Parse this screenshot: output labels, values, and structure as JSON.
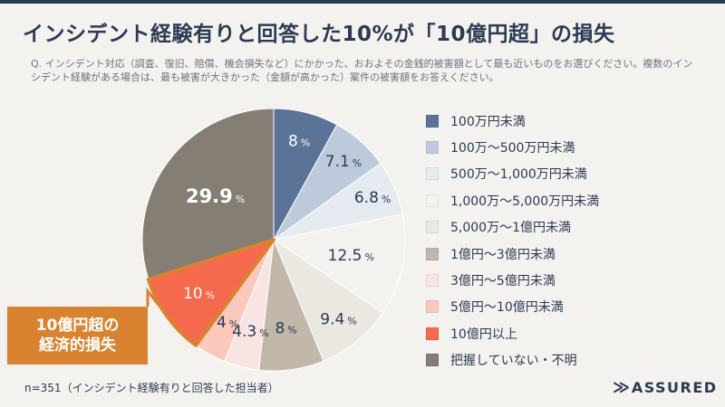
{
  "title": "インシデント経験有りと回答した10%が「10億円超」の損失",
  "question": "Q. インシデント対応（調査、復旧、賠償、機会損失など）にかかった、おおよその金銭的被害額として最も近いものをお選びください。複数のインシデント経験がある場合は、最も被害が大きかった（金額が高かった）案件の被害額をお答えください。",
  "callout": {
    "line1": "10億円超の",
    "line2": "経済的損失"
  },
  "footnote": "n=351（インシデント経験有りと回答した担当者）",
  "logo": {
    "text": "ASSURED",
    "icon": "double-chevron-logo-icon"
  },
  "colors": {
    "accent": "#d9822f",
    "title": "#2b3a55",
    "background": "#f4f2ef"
  },
  "chart_data": {
    "type": "pie",
    "unit": "%",
    "start": "12 o'clock, clockwise",
    "legend_position": "right",
    "highlight": "10億円以上",
    "slices": [
      {
        "label": "100万円未満",
        "value": 8,
        "color": "#5a7397",
        "text_color": "#ffffff"
      },
      {
        "label": "100万〜500万円未満",
        "value": 7.1,
        "color": "#bccadb",
        "text_color": "#2b3a55"
      },
      {
        "label": "500万〜1,000万円未満",
        "value": 6.8,
        "color": "#e6eaf1",
        "text_color": "#2b3a55"
      },
      {
        "label": "1,000万〜5,000万円未満",
        "value": 12.5,
        "color": "#f4f2ef",
        "text_color": "#2b3a55"
      },
      {
        "label": "5,000万〜1億円未満",
        "value": 9.4,
        "color": "#ebe8e2",
        "text_color": "#2b3a55"
      },
      {
        "label": "1億円〜3億円未満",
        "value": 8,
        "color": "#c2b8aa",
        "text_color": "#2b3a55"
      },
      {
        "label": "3億円〜5億円未満",
        "value": 4.3,
        "color": "#f8e4e2",
        "text_color": "#2b3a55"
      },
      {
        "label": "5億円〜10億円未満",
        "value": 4,
        "color": "#fbc8bc",
        "text_color": "#2b3a55"
      },
      {
        "label": "10億円以上",
        "value": 10,
        "color": "#f5694f",
        "text_color": "#ffffff"
      },
      {
        "label": "把握していない・不明",
        "value": 29.9,
        "color": "#847e74",
        "text_color": "#ffffff"
      }
    ]
  }
}
